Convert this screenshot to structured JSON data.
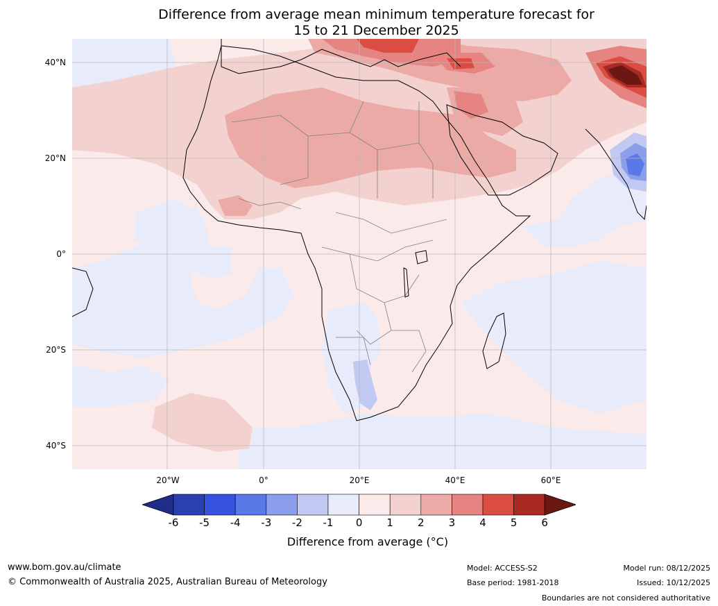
{
  "title_line1": "Difference from average mean minimum temperature forecast for",
  "title_line2": "15 to 21 December 2025",
  "map": {
    "lat_labels": [
      "40°N",
      "20°N",
      "0°",
      "20°S",
      "40°S"
    ],
    "lon_labels": [
      "20°W",
      "0°",
      "20°E",
      "40°E",
      "60°E"
    ]
  },
  "colorbar": {
    "ticks": [
      "-6",
      "-5",
      "-4",
      "-3",
      "-2",
      "-1",
      "0",
      "1",
      "2",
      "3",
      "4",
      "5",
      "6"
    ],
    "colors": [
      "#1e2c8a",
      "#2a3fb0",
      "#3552e0",
      "#5a78e6",
      "#8a9eec",
      "#c1c9f2",
      "#e8ebfa",
      "#fbeaea",
      "#f3d1cf",
      "#ebaaa6",
      "#e58480",
      "#db4d43",
      "#a92a23",
      "#6b1813"
    ],
    "label": "Difference from average (°C)"
  },
  "footer": {
    "website": "www.bom.gov.au/climate",
    "copyright": "© Commonwealth of Australia 2025, Australian Bureau of Meteorology",
    "model": "Model: ACCESS-S2",
    "base_period": "Base period: 1981-2018",
    "model_run": "Model run: 08/12/2025",
    "issued": "Issued: 10/12/2025",
    "boundaries_note": "Boundaries are not considered authoritative"
  }
}
